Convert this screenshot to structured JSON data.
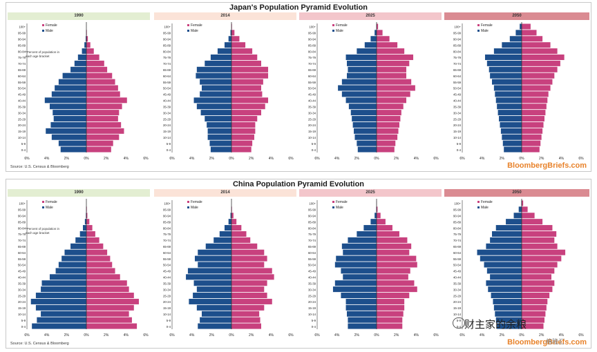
{
  "colors": {
    "female": "#c8417e",
    "male": "#1d4f8c",
    "axis": "#333333"
  },
  "year_bar_colors": [
    "#e3eed2",
    "#fbe3d8",
    "#f3c6cb",
    "#da8b92"
  ],
  "age_groups": [
    "100+",
    "95-99",
    "90-94",
    "85-89",
    "80-84",
    "75-79",
    "70-74",
    "65-69",
    "60-64",
    "55-59",
    "50-54",
    "45-49",
    "40-44",
    "35-39",
    "30-34",
    "25-29",
    "20-24",
    "15-19",
    "10-14",
    "5-9",
    "0-4"
  ],
  "x_ticks": [
    "6%",
    "4%",
    "2%",
    "0%",
    "2%",
    "4%",
    "6%"
  ],
  "legend": {
    "female": "Female",
    "male": "Male"
  },
  "source": "Source: U.S. Census & Bloomberg",
  "brand": "BloombergBriefs.com",
  "note": "*Percent of population in each age bracket",
  "watermark": "财主家的余粮",
  "watermark2": "格隆汇",
  "chart_data": [
    {
      "type": "bar",
      "title": "Japan's Population Pyramid Evolution",
      "year": "1990",
      "categories": [
        "100+",
        "95-99",
        "90-94",
        "85-89",
        "80-84",
        "75-79",
        "70-74",
        "65-69",
        "60-64",
        "55-59",
        "50-54",
        "45-49",
        "40-44",
        "35-39",
        "30-34",
        "25-29",
        "20-24",
        "15-19",
        "10-14",
        "5-9",
        "0-4"
      ],
      "series": [
        {
          "name": "Female",
          "values": [
            0,
            0.05,
            0.15,
            0.4,
            0.75,
            1.3,
            1.8,
            2.1,
            2.6,
            2.9,
            3.2,
            3.4,
            4.1,
            3.6,
            3.3,
            3.2,
            3.5,
            3.8,
            3.3,
            2.7,
            2.5
          ]
        },
        {
          "name": "Male",
          "values": [
            0,
            0.02,
            0.07,
            0.2,
            0.45,
            0.85,
            1.2,
            1.6,
            2.4,
            2.8,
            3.2,
            3.5,
            4.2,
            3.7,
            3.4,
            3.3,
            3.6,
            4.1,
            3.5,
            2.8,
            2.6
          ]
        }
      ],
      "xlim": [
        -6,
        6
      ]
    },
    {
      "type": "bar",
      "title": "Japan's Population Pyramid Evolution",
      "year": "2014",
      "categories": [
        "100+",
        "95-99",
        "90-94",
        "85-89",
        "80-84",
        "75-79",
        "70-74",
        "65-69",
        "60-64",
        "55-59",
        "50-54",
        "45-49",
        "40-44",
        "35-39",
        "30-34",
        "25-29",
        "20-24",
        "15-19",
        "10-14",
        "5-9",
        "0-4"
      ],
      "series": [
        {
          "name": "Female",
          "values": [
            0.05,
            0.3,
            0.8,
            1.4,
            2.1,
            2.6,
            3.0,
            3.7,
            3.7,
            3.2,
            3.0,
            3.1,
            3.7,
            3.4,
            3.0,
            2.6,
            2.4,
            2.4,
            2.3,
            2.1,
            2.0
          ]
        },
        {
          "name": "Male",
          "values": [
            0.01,
            0.1,
            0.3,
            0.7,
            1.4,
            2.1,
            2.7,
            3.5,
            3.6,
            3.2,
            3.0,
            3.2,
            3.8,
            3.5,
            3.1,
            2.7,
            2.5,
            2.4,
            2.4,
            2.2,
            2.1
          ]
        }
      ],
      "xlim": [
        -6,
        6
      ]
    },
    {
      "type": "bar",
      "title": "Japan's Population Pyramid Evolution",
      "year": "2025",
      "categories": [
        "100+",
        "95-99",
        "90-94",
        "85-89",
        "80-84",
        "75-79",
        "70-74",
        "65-69",
        "60-64",
        "55-59",
        "50-54",
        "45-49",
        "40-44",
        "35-39",
        "30-34",
        "25-29",
        "20-24",
        "15-19",
        "10-14",
        "5-9",
        "0-4"
      ],
      "series": [
        {
          "name": "Female",
          "values": [
            0.15,
            0.6,
            1.3,
            2.1,
            2.8,
            3.7,
            3.3,
            3.0,
            3.0,
            3.5,
            3.9,
            3.4,
            3.0,
            2.7,
            2.5,
            2.4,
            2.3,
            2.2,
            2.1,
            1.9,
            1.8
          ]
        },
        {
          "name": "Male",
          "values": [
            0.03,
            0.2,
            0.6,
            1.2,
            2.0,
            3.1,
            3.0,
            2.9,
            3.0,
            3.5,
            3.9,
            3.5,
            3.1,
            2.8,
            2.6,
            2.5,
            2.4,
            2.3,
            2.2,
            2.0,
            1.9
          ]
        }
      ],
      "xlim": [
        -6,
        6
      ]
    },
    {
      "type": "bar",
      "title": "Japan's Population Pyramid Evolution",
      "year": "2050",
      "categories": [
        "100+",
        "95-99",
        "90-94",
        "85-89",
        "80-84",
        "75-79",
        "70-74",
        "65-69",
        "60-64",
        "55-59",
        "50-54",
        "45-49",
        "40-44",
        "35-39",
        "30-34",
        "25-29",
        "20-24",
        "15-19",
        "10-14",
        "5-9",
        "0-4"
      ],
      "series": [
        {
          "name": "Female",
          "values": [
            0.9,
            1.5,
            2.1,
            2.9,
            3.6,
            4.3,
            3.9,
            3.6,
            3.3,
            3.1,
            2.9,
            2.7,
            2.6,
            2.5,
            2.4,
            2.3,
            2.2,
            2.1,
            2.0,
            1.9,
            1.8
          ]
        },
        {
          "name": "Male",
          "values": [
            0.2,
            0.6,
            1.2,
            2.0,
            2.8,
            3.7,
            3.5,
            3.3,
            3.2,
            3.0,
            2.8,
            2.7,
            2.6,
            2.5,
            2.4,
            2.3,
            2.2,
            2.1,
            2.0,
            1.9,
            1.8
          ]
        }
      ],
      "xlim": [
        -6,
        6
      ]
    },
    {
      "type": "bar",
      "title": "China Population Pyramid Evolution",
      "year": "1990",
      "categories": [
        "100+",
        "95-99",
        "90-94",
        "85-89",
        "80-84",
        "75-79",
        "70-74",
        "65-69",
        "60-64",
        "55-59",
        "50-54",
        "45-49",
        "40-44",
        "35-39",
        "30-34",
        "25-29",
        "20-24",
        "15-19",
        "10-14",
        "5-9",
        "0-4"
      ],
      "series": [
        {
          "name": "Female",
          "values": [
            0,
            0.05,
            0.1,
            0.3,
            0.6,
            0.9,
            1.3,
            1.7,
            2.1,
            2.4,
            2.6,
            2.9,
            3.4,
            4.1,
            4.3,
            4.8,
            5.3,
            4.8,
            4.3,
            4.6,
            5.1
          ]
        },
        {
          "name": "Male",
          "values": [
            0,
            0.02,
            0.05,
            0.15,
            0.35,
            0.65,
            1.1,
            1.6,
            2.2,
            2.5,
            2.8,
            3.1,
            3.7,
            4.5,
            4.6,
            5.1,
            5.6,
            5.1,
            4.6,
            5.0,
            5.5
          ]
        }
      ],
      "xlim": [
        -6,
        6
      ]
    },
    {
      "type": "bar",
      "title": "China Population Pyramid Evolution",
      "year": "2014",
      "categories": [
        "100+",
        "95-99",
        "90-94",
        "85-89",
        "80-84",
        "75-79",
        "70-74",
        "65-69",
        "60-64",
        "55-59",
        "50-54",
        "45-49",
        "40-44",
        "35-39",
        "30-34",
        "25-29",
        "20-24",
        "15-19",
        "10-14",
        "5-9",
        "0-4"
      ],
      "series": [
        {
          "name": "Female",
          "values": [
            0,
            0.05,
            0.2,
            0.5,
            1.0,
            1.5,
            1.9,
            2.6,
            3.3,
            3.6,
            3.3,
            4.1,
            4.3,
            3.6,
            3.3,
            3.6,
            4.1,
            3.3,
            2.8,
            2.9,
            3.0
          ]
        },
        {
          "name": "Male",
          "values": [
            0,
            0.02,
            0.1,
            0.3,
            0.7,
            1.2,
            1.8,
            2.6,
            3.4,
            3.7,
            3.4,
            4.4,
            4.6,
            3.8,
            3.5,
            3.9,
            4.3,
            3.5,
            3.0,
            3.2,
            3.4
          ]
        }
      ],
      "xlim": [
        -6,
        6
      ]
    },
    {
      "type": "bar",
      "title": "China Population Pyramid Evolution",
      "year": "2025",
      "categories": [
        "100+",
        "95-99",
        "90-94",
        "85-89",
        "80-84",
        "75-79",
        "70-74",
        "65-69",
        "60-64",
        "55-59",
        "50-54",
        "45-49",
        "40-44",
        "35-39",
        "30-34",
        "25-29",
        "20-24",
        "15-19",
        "10-14",
        "5-9",
        "0-4"
      ],
      "series": [
        {
          "name": "Female",
          "values": [
            0.02,
            0.1,
            0.4,
            0.9,
            1.6,
            2.3,
            3.1,
            3.5,
            3.3,
            4.0,
            4.1,
            3.4,
            3.2,
            3.8,
            4.1,
            3.3,
            2.8,
            2.8,
            2.7,
            2.6,
            2.6
          ]
        },
        {
          "name": "Male",
          "values": [
            0.01,
            0.04,
            0.2,
            0.6,
            1.3,
            2.0,
            2.9,
            3.5,
            3.4,
            4.1,
            4.2,
            3.6,
            3.4,
            4.2,
            4.4,
            3.6,
            3.1,
            3.1,
            3.0,
            2.9,
            2.9
          ]
        }
      ],
      "xlim": [
        -6,
        6
      ]
    },
    {
      "type": "bar",
      "title": "China Population Pyramid Evolution",
      "year": "2050",
      "categories": [
        "100+",
        "95-99",
        "90-94",
        "85-89",
        "80-84",
        "75-79",
        "70-74",
        "65-69",
        "60-64",
        "55-59",
        "50-54",
        "45-49",
        "40-44",
        "35-39",
        "30-34",
        "25-29",
        "20-24",
        "15-19",
        "10-14",
        "5-9",
        "0-4"
      ],
      "series": [
        {
          "name": "Female",
          "values": [
            0.15,
            0.6,
            1.3,
            2.1,
            3.1,
            3.5,
            3.3,
            3.6,
            4.4,
            4.0,
            3.6,
            3.3,
            3.0,
            3.3,
            3.1,
            2.8,
            2.6,
            2.5,
            2.4,
            2.3,
            2.2
          ]
        },
        {
          "name": "Male",
          "values": [
            0.04,
            0.3,
            0.8,
            1.6,
            2.6,
            3.0,
            3.2,
            3.6,
            4.5,
            4.2,
            3.8,
            3.5,
            3.2,
            3.6,
            3.4,
            3.1,
            2.9,
            2.8,
            2.7,
            2.6,
            2.5
          ]
        }
      ],
      "xlim": [
        -6,
        6
      ]
    }
  ]
}
